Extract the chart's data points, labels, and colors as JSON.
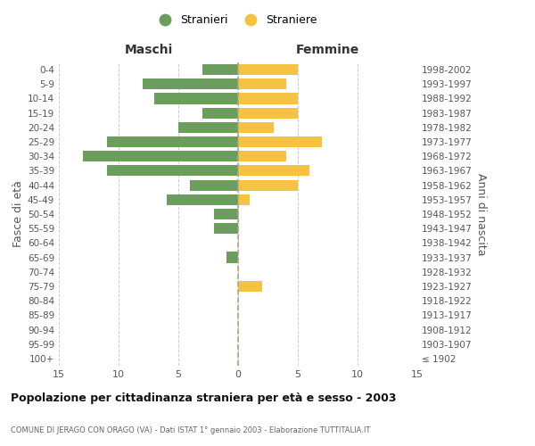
{
  "age_groups": [
    "100+",
    "95-99",
    "90-94",
    "85-89",
    "80-84",
    "75-79",
    "70-74",
    "65-69",
    "60-64",
    "55-59",
    "50-54",
    "45-49",
    "40-44",
    "35-39",
    "30-34",
    "25-29",
    "20-24",
    "15-19",
    "10-14",
    "5-9",
    "0-4"
  ],
  "birth_years": [
    "≤ 1902",
    "1903-1907",
    "1908-1912",
    "1913-1917",
    "1918-1922",
    "1923-1927",
    "1928-1932",
    "1933-1937",
    "1938-1942",
    "1943-1947",
    "1948-1952",
    "1953-1957",
    "1958-1962",
    "1963-1967",
    "1968-1972",
    "1973-1977",
    "1978-1982",
    "1983-1987",
    "1988-1992",
    "1993-1997",
    "1998-2002"
  ],
  "males": [
    0,
    0,
    0,
    0,
    0,
    0,
    0,
    1,
    0,
    2,
    2,
    6,
    4,
    11,
    13,
    11,
    5,
    3,
    7,
    8,
    3
  ],
  "females": [
    0,
    0,
    0,
    0,
    0,
    2,
    0,
    0,
    0,
    0,
    0,
    1,
    5,
    6,
    4,
    7,
    3,
    5,
    5,
    4,
    5
  ],
  "male_color": "#6b9e5e",
  "female_color": "#f5c242",
  "background_color": "#ffffff",
  "grid_color": "#cccccc",
  "title": "Popolazione per cittadinanza straniera per età e sesso - 2003",
  "subtitle": "COMUNE DI JERAGO CON ORAGO (VA) - Dati ISTAT 1° gennaio 2003 - Elaborazione TUTTITALIA.IT",
  "xlabel_left": "Maschi",
  "xlabel_right": "Femmine",
  "ylabel_left": "Fasce di età",
  "ylabel_right": "Anni di nascita",
  "legend_male": "Stranieri",
  "legend_female": "Straniere",
  "xlim": 15
}
